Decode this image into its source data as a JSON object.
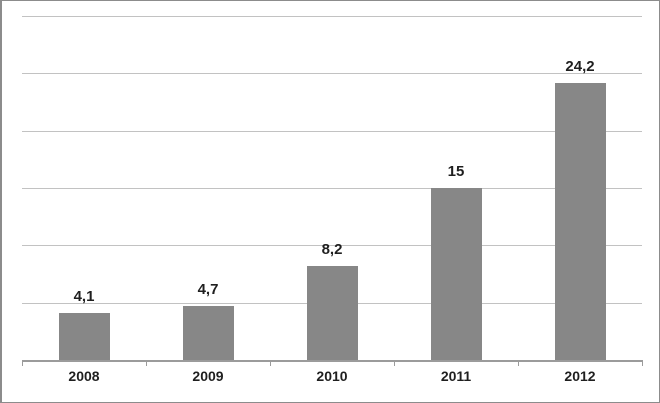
{
  "chart_data": {
    "type": "bar",
    "title": "",
    "categories": [
      "2008",
      "2009",
      "2010",
      "2011",
      "2012"
    ],
    "values": [
      4.1,
      4.7,
      8.2,
      15,
      24.2
    ],
    "value_labels": [
      "4,1",
      "4,7",
      "8,2",
      "15",
      "24,2"
    ],
    "xlabel": "",
    "ylabel": "",
    "ylim": [
      0,
      30
    ],
    "gridline_step": 5,
    "grid": true,
    "y_tick_labels_visible": false,
    "legend_position": "none",
    "colors": {
      "bar_fill": "#878787",
      "gridline": "#c2c2c2",
      "axis_line": "#9b9b9b",
      "label_text": "#1f1f1f",
      "frame_border": "#8c8c8c",
      "background": "#ffffff"
    }
  }
}
